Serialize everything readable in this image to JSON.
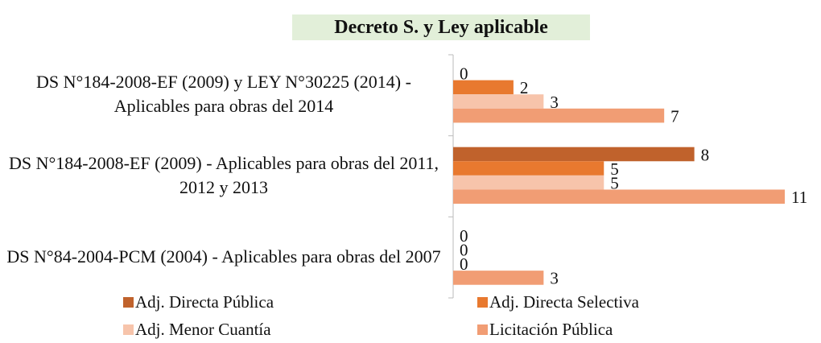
{
  "chart_data": {
    "type": "barh",
    "title": "Decreto S. y Ley aplicable",
    "categories": [
      "DS N°184-2008-EF (2009) y LEY N°30225 (2014) - Aplicables para obras del 2014",
      "DS N°184-2008-EF (2009) - Aplicables para obras del 2011, 2012 y 2013",
      "DS N°84-2004-PCM (2004) - Aplicables para obras del 2007"
    ],
    "series": [
      {
        "name": "Adj. Directa Pública",
        "color": "#c0622c",
        "values": [
          0,
          8,
          0
        ]
      },
      {
        "name": "Adj. Directa Selectiva",
        "color": "#e8792f",
        "values": [
          2,
          5,
          0
        ]
      },
      {
        "name": "Adj. Menor Cuantía",
        "color": "#f7c4ab",
        "values": [
          3,
          5,
          0
        ]
      },
      {
        "name": "Licitación Pública",
        "color": "#f19d74",
        "values": [
          7,
          11,
          3
        ]
      }
    ],
    "xlim": [
      0,
      11
    ],
    "legend": "bottom"
  }
}
